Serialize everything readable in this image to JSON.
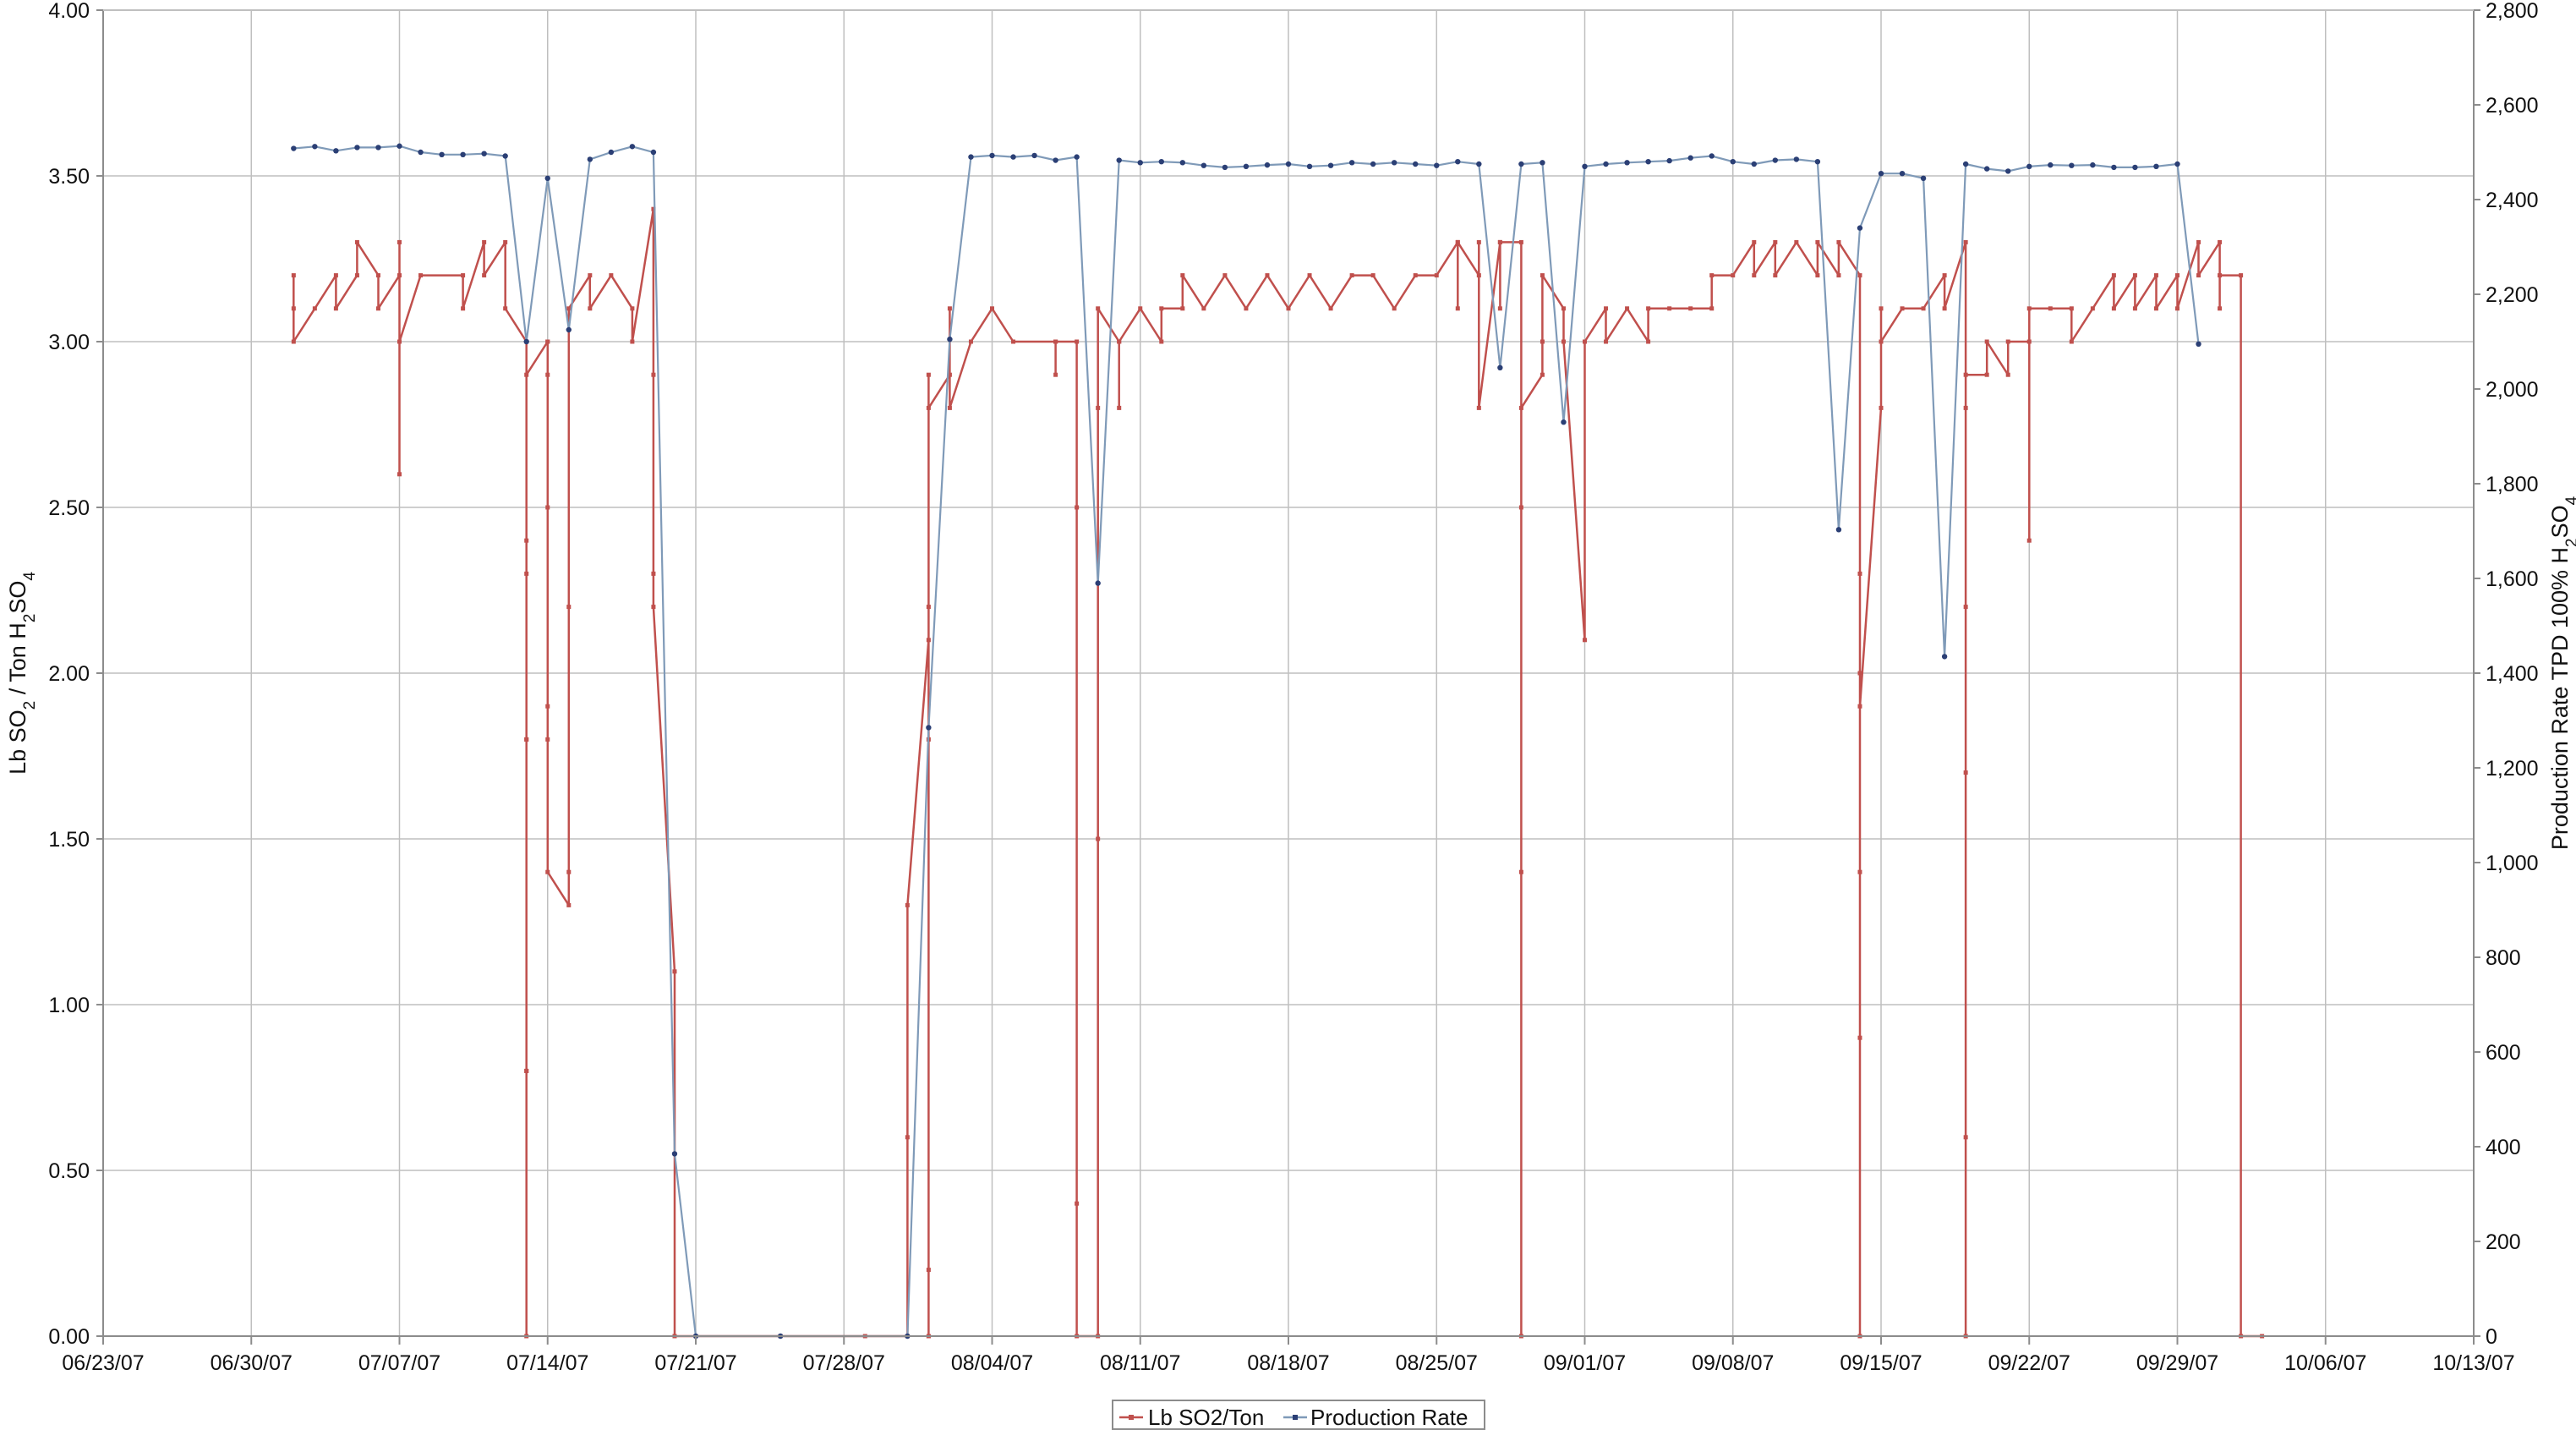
{
  "chart_data": {
    "type": "line",
    "title": "",
    "xlabel": "",
    "x_ticks": [
      "06/23/07",
      "06/30/07",
      "07/07/07",
      "07/14/07",
      "07/21/07",
      "07/28/07",
      "08/04/07",
      "08/11/07",
      "08/18/07",
      "08/25/07",
      "09/01/07",
      "09/08/07",
      "09/15/07",
      "09/22/07",
      "09/29/07",
      "10/06/07",
      "10/13/07"
    ],
    "xlim": [
      "06/23/07",
      "10/13/07"
    ],
    "y_left": {
      "label_parts": [
        "Lb SO",
        "2",
        " / Ton H",
        "2",
        "SO",
        "4"
      ],
      "lim": [
        0,
        4
      ],
      "ticks": [
        "0.00",
        "0.50",
        "1.00",
        "1.50",
        "2.00",
        "2.50",
        "3.00",
        "3.50",
        "4.00"
      ]
    },
    "y_right": {
      "label_parts": [
        "Production Rate TPD 100% H",
        "2",
        "SO",
        "4"
      ],
      "lim": [
        0,
        2800
      ],
      "ticks": [
        "0",
        "200",
        "400",
        "600",
        "800",
        "1,000",
        "1,200",
        "1,400",
        "1,600",
        "1,800",
        "2,000",
        "2,200",
        "2,400",
        "2,600",
        "2,800"
      ]
    },
    "grid": true,
    "legend_position": "bottom-center",
    "colors": {
      "so2": "#c0504d",
      "production": "#7f9ab8",
      "grid": "#bfbfbf"
    },
    "series": [
      {
        "name": "Lb SO2/Ton",
        "axis": "left",
        "points": [
          [
            "07/02/07",
            3.2
          ],
          [
            "07/02/07",
            3.1
          ],
          [
            "07/02/07",
            3.0
          ],
          [
            "07/03/07",
            3.1
          ],
          [
            "07/04/07",
            3.2
          ],
          [
            "07/04/07",
            3.1
          ],
          [
            "07/05/07",
            3.2
          ],
          [
            "07/05/07",
            3.3
          ],
          [
            "07/06/07",
            3.2
          ],
          [
            "07/06/07",
            3.1
          ],
          [
            "07/07/07",
            3.2
          ],
          [
            "07/07/07",
            2.6
          ],
          [
            "07/07/07",
            3.3
          ],
          [
            "07/07/07",
            3.0
          ],
          [
            "07/08/07",
            3.2
          ],
          [
            "07/10/07",
            3.2
          ],
          [
            "07/10/07",
            3.1
          ],
          [
            "07/11/07",
            3.3
          ],
          [
            "07/11/07",
            3.2
          ],
          [
            "07/12/07",
            3.3
          ],
          [
            "07/12/07",
            3.1
          ],
          [
            "07/13/07",
            3.0
          ],
          [
            "07/13/07",
            2.3
          ],
          [
            "07/13/07",
            1.8
          ],
          [
            "07/13/07",
            0.8
          ],
          [
            "07/13/07",
            0.0
          ],
          [
            "07/13/07",
            0.8
          ],
          [
            "07/13/07",
            1.8
          ],
          [
            "07/13/07",
            2.4
          ],
          [
            "07/13/07",
            2.9
          ],
          [
            "07/14/07",
            3.0
          ],
          [
            "07/14/07",
            2.9
          ],
          [
            "07/14/07",
            3.0
          ],
          [
            "07/14/07",
            2.5
          ],
          [
            "07/14/07",
            1.9
          ],
          [
            "07/14/07",
            1.8
          ],
          [
            "07/14/07",
            1.4
          ],
          [
            "07/15/07",
            1.3
          ],
          [
            "07/15/07",
            1.4
          ],
          [
            "07/15/07",
            2.2
          ],
          [
            "07/15/07",
            3.1
          ],
          [
            "07/16/07",
            3.2
          ],
          [
            "07/16/07",
            3.1
          ],
          [
            "07/17/07",
            3.2
          ],
          [
            "07/18/07",
            3.1
          ],
          [
            "07/18/07",
            3.0
          ],
          [
            "07/19/07",
            3.4
          ],
          [
            "07/19/07",
            2.9
          ],
          [
            "07/19/07",
            2.3
          ],
          [
            "07/19/07",
            2.2
          ],
          [
            "07/20/07",
            1.1
          ],
          [
            "07/20/07",
            0.0
          ],
          [
            "07/21/07",
            0.0
          ],
          [
            "07/25/07",
            0.0
          ],
          [
            "07/29/07",
            0.0
          ],
          [
            "07/31/07",
            0.0
          ],
          [
            "07/31/07",
            0.6
          ],
          [
            "07/31/07",
            1.3
          ],
          [
            "08/01/07",
            2.1
          ],
          [
            "08/01/07",
            1.8
          ],
          [
            "08/01/07",
            0.0
          ],
          [
            "08/01/07",
            0.2
          ],
          [
            "08/01/07",
            0.0
          ],
          [
            "08/01/07",
            2.2
          ],
          [
            "08/01/07",
            2.9
          ],
          [
            "08/01/07",
            2.8
          ],
          [
            "08/02/07",
            2.9
          ],
          [
            "08/02/07",
            3.1
          ],
          [
            "08/02/07",
            2.8
          ],
          [
            "08/03/07",
            3.0
          ],
          [
            "08/04/07",
            3.1
          ],
          [
            "08/05/07",
            3.0
          ],
          [
            "08/07/07",
            3.0
          ],
          [
            "08/07/07",
            2.9
          ],
          [
            "08/07/07",
            3.0
          ],
          [
            "08/08/07",
            3.0
          ],
          [
            "08/08/07",
            2.5
          ],
          [
            "08/08/07",
            0.4
          ],
          [
            "08/08/07",
            0.0
          ],
          [
            "08/09/07",
            0.0
          ],
          [
            "08/09/07",
            1.5
          ],
          [
            "08/09/07",
            2.8
          ],
          [
            "08/09/07",
            3.1
          ],
          [
            "08/10/07",
            3.0
          ],
          [
            "08/10/07",
            2.8
          ],
          [
            "08/10/07",
            3.0
          ],
          [
            "08/11/07",
            3.1
          ],
          [
            "08/12/07",
            3.0
          ],
          [
            "08/12/07",
            3.1
          ],
          [
            "08/13/07",
            3.1
          ],
          [
            "08/13/07",
            3.2
          ],
          [
            "08/14/07",
            3.1
          ],
          [
            "08/15/07",
            3.2
          ],
          [
            "08/16/07",
            3.1
          ],
          [
            "08/17/07",
            3.2
          ],
          [
            "08/18/07",
            3.1
          ],
          [
            "08/19/07",
            3.2
          ],
          [
            "08/20/07",
            3.1
          ],
          [
            "08/21/07",
            3.2
          ],
          [
            "08/22/07",
            3.2
          ],
          [
            "08/23/07",
            3.1
          ],
          [
            "08/24/07",
            3.2
          ],
          [
            "08/25/07",
            3.2
          ],
          [
            "08/26/07",
            3.3
          ],
          [
            "08/26/07",
            3.1
          ],
          [
            "08/26/07",
            3.3
          ],
          [
            "08/27/07",
            3.2
          ],
          [
            "08/27/07",
            3.3
          ],
          [
            "08/27/07",
            2.8
          ],
          [
            "08/28/07",
            3.3
          ],
          [
            "08/28/07",
            3.1
          ],
          [
            "08/28/07",
            3.3
          ],
          [
            "08/29/07",
            3.3
          ],
          [
            "08/29/07",
            1.4
          ],
          [
            "08/29/07",
            0.0
          ],
          [
            "08/29/07",
            2.5
          ],
          [
            "08/29/07",
            2.8
          ],
          [
            "08/30/07",
            2.9
          ],
          [
            "08/30/07",
            3.0
          ],
          [
            "08/30/07",
            3.2
          ],
          [
            "08/31/07",
            3.1
          ],
          [
            "08/31/07",
            3.0
          ],
          [
            "09/01/07",
            2.1
          ],
          [
            "09/01/07",
            3.0
          ],
          [
            "09/02/07",
            3.1
          ],
          [
            "09/02/07",
            3.0
          ],
          [
            "09/03/07",
            3.1
          ],
          [
            "09/04/07",
            3.0
          ],
          [
            "09/04/07",
            3.1
          ],
          [
            "09/05/07",
            3.1
          ],
          [
            "09/06/07",
            3.1
          ],
          [
            "09/07/07",
            3.1
          ],
          [
            "09/07/07",
            3.2
          ],
          [
            "09/08/07",
            3.2
          ],
          [
            "09/09/07",
            3.3
          ],
          [
            "09/09/07",
            3.2
          ],
          [
            "09/10/07",
            3.3
          ],
          [
            "09/10/07",
            3.2
          ],
          [
            "09/11/07",
            3.3
          ],
          [
            "09/12/07",
            3.2
          ],
          [
            "09/12/07",
            3.3
          ],
          [
            "09/13/07",
            3.2
          ],
          [
            "09/13/07",
            3.3
          ],
          [
            "09/14/07",
            3.2
          ],
          [
            "09/14/07",
            2.0
          ],
          [
            "09/14/07",
            0.9
          ],
          [
            "09/14/07",
            0.0
          ],
          [
            "09/14/07",
            1.4
          ],
          [
            "09/14/07",
            2.3
          ],
          [
            "09/14/07",
            1.9
          ],
          [
            "09/15/07",
            2.8
          ],
          [
            "09/15/07",
            3.1
          ],
          [
            "09/15/07",
            3.0
          ],
          [
            "09/16/07",
            3.1
          ],
          [
            "09/17/07",
            3.1
          ],
          [
            "09/18/07",
            3.2
          ],
          [
            "09/18/07",
            3.1
          ],
          [
            "09/19/07",
            3.3
          ],
          [
            "09/19/07",
            2.8
          ],
          [
            "09/19/07",
            0.6
          ],
          [
            "09/19/07",
            0.0
          ],
          [
            "09/19/07",
            1.7
          ],
          [
            "09/19/07",
            2.2
          ],
          [
            "09/19/07",
            2.9
          ],
          [
            "09/20/07",
            2.9
          ],
          [
            "09/20/07",
            3.0
          ],
          [
            "09/21/07",
            2.9
          ],
          [
            "09/21/07",
            3.0
          ],
          [
            "09/22/07",
            3.0
          ],
          [
            "09/22/07",
            2.4
          ],
          [
            "09/22/07",
            3.1
          ],
          [
            "09/23/07",
            3.1
          ],
          [
            "09/24/07",
            3.1
          ],
          [
            "09/24/07",
            3.0
          ],
          [
            "09/25/07",
            3.1
          ],
          [
            "09/26/07",
            3.2
          ],
          [
            "09/26/07",
            3.1
          ],
          [
            "09/27/07",
            3.2
          ],
          [
            "09/27/07",
            3.1
          ],
          [
            "09/28/07",
            3.2
          ],
          [
            "09/28/07",
            3.1
          ],
          [
            "09/29/07",
            3.2
          ],
          [
            "09/29/07",
            3.1
          ],
          [
            "09/30/07",
            3.3
          ],
          [
            "09/30/07",
            3.2
          ],
          [
            "10/01/07",
            3.3
          ],
          [
            "10/01/07",
            3.1
          ],
          [
            "10/01/07",
            3.2
          ],
          [
            "10/02/07",
            3.2
          ],
          [
            "10/02/07",
            0.0
          ],
          [
            "10/03/07",
            0.0
          ]
        ]
      },
      {
        "name": "Production Rate",
        "axis": "right",
        "points": [
          [
            "07/02/07",
            2508
          ],
          [
            "07/03/07",
            2512
          ],
          [
            "07/04/07",
            2503
          ],
          [
            "07/05/07",
            2510
          ],
          [
            "07/06/07",
            2510
          ],
          [
            "07/07/07",
            2513
          ],
          [
            "07/08/07",
            2500
          ],
          [
            "07/09/07",
            2495
          ],
          [
            "07/10/07",
            2495
          ],
          [
            "07/11/07",
            2497
          ],
          [
            "07/12/07",
            2492
          ],
          [
            "07/13/07",
            2100
          ],
          [
            "07/14/07",
            2445
          ],
          [
            "07/15/07",
            2125
          ],
          [
            "07/16/07",
            2485
          ],
          [
            "07/17/07",
            2500
          ],
          [
            "07/18/07",
            2512
          ],
          [
            "07/19/07",
            2500
          ],
          [
            "07/20/07",
            385
          ],
          [
            "07/21/07",
            0
          ],
          [
            "07/25/07",
            0
          ],
          [
            "07/31/07",
            0
          ],
          [
            "08/01/07",
            1285
          ],
          [
            "08/02/07",
            2105
          ],
          [
            "08/03/07",
            2490
          ],
          [
            "08/04/07",
            2493
          ],
          [
            "08/05/07",
            2490
          ],
          [
            "08/06/07",
            2493
          ],
          [
            "08/07/07",
            2483
          ],
          [
            "08/08/07",
            2490
          ],
          [
            "08/09/07",
            1590
          ],
          [
            "08/10/07",
            2483
          ],
          [
            "08/11/07",
            2478
          ],
          [
            "08/12/07",
            2480
          ],
          [
            "08/13/07",
            2478
          ],
          [
            "08/14/07",
            2472
          ],
          [
            "08/15/07",
            2468
          ],
          [
            "08/16/07",
            2470
          ],
          [
            "08/17/07",
            2473
          ],
          [
            "08/18/07",
            2475
          ],
          [
            "08/19/07",
            2470
          ],
          [
            "08/20/07",
            2472
          ],
          [
            "08/21/07",
            2478
          ],
          [
            "08/22/07",
            2475
          ],
          [
            "08/23/07",
            2478
          ],
          [
            "08/24/07",
            2475
          ],
          [
            "08/25/07",
            2472
          ],
          [
            "08/26/07",
            2480
          ],
          [
            "08/27/07",
            2475
          ],
          [
            "08/28/07",
            2045
          ],
          [
            "08/29/07",
            2475
          ],
          [
            "08/30/07",
            2478
          ],
          [
            "08/31/07",
            1930
          ],
          [
            "09/01/07",
            2470
          ],
          [
            "09/02/07",
            2475
          ],
          [
            "09/03/07",
            2478
          ],
          [
            "09/04/07",
            2480
          ],
          [
            "09/05/07",
            2482
          ],
          [
            "09/06/07",
            2488
          ],
          [
            "09/07/07",
            2492
          ],
          [
            "09/08/07",
            2480
          ],
          [
            "09/09/07",
            2475
          ],
          [
            "09/10/07",
            2483
          ],
          [
            "09/11/07",
            2485
          ],
          [
            "09/12/07",
            2480
          ],
          [
            "09/13/07",
            1703
          ],
          [
            "09/14/07",
            2340
          ],
          [
            "09/15/07",
            2455
          ],
          [
            "09/16/07",
            2455
          ],
          [
            "09/17/07",
            2445
          ],
          [
            "09/18/07",
            1435
          ],
          [
            "09/19/07",
            2475
          ],
          [
            "09/20/07",
            2465
          ],
          [
            "09/21/07",
            2460
          ],
          [
            "09/22/07",
            2470
          ],
          [
            "09/23/07",
            2473
          ],
          [
            "09/24/07",
            2472
          ],
          [
            "09/25/07",
            2473
          ],
          [
            "09/26/07",
            2468
          ],
          [
            "09/27/07",
            2468
          ],
          [
            "09/28/07",
            2470
          ],
          [
            "09/29/07",
            2475
          ],
          [
            "09/30/07",
            2095
          ]
        ]
      }
    ]
  }
}
